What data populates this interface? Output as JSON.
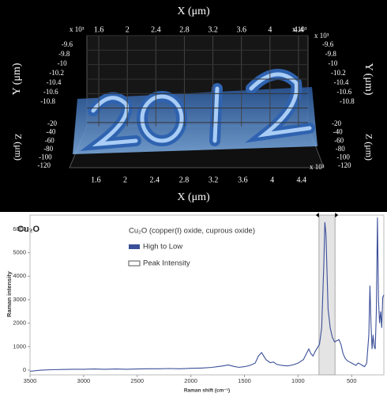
{
  "chart_data": [
    {
      "type": "surface3d",
      "xlabel": "X (μm)",
      "ylabel": "Y (μm)",
      "zlabel": "Z (μm)",
      "multiplier": "x 10³",
      "xlim": [
        1.4,
        4.6
      ],
      "xticks": [
        1.6,
        2.0,
        2.4,
        2.8,
        3.2,
        3.6,
        4.0,
        4.4
      ],
      "ylim": [
        -9.6,
        -10.8
      ],
      "yticks": [
        -9.6,
        -9.8,
        -10.0,
        -10.2,
        -10.4,
        -10.6,
        -10.8
      ],
      "zlim": [
        -20,
        -120
      ],
      "zticks": [
        -20,
        -40,
        -60,
        -80,
        -100,
        -120
      ]
    },
    {
      "type": "line",
      "title": "Cu₂O",
      "legend_title": "Cu₂O (copper(I) oxide, cuprous oxide)",
      "xlabel": "Raman shift (cm⁻¹)",
      "ylabel": "Raman intensity",
      "xlim": [
        3500,
        200
      ],
      "xticks": [
        3500,
        3000,
        2500,
        2000,
        1500,
        1000,
        500
      ],
      "ylim": [
        -200,
        6600
      ],
      "yticks": [
        0,
        1000,
        2000,
        3000,
        4000,
        5000,
        6000
      ],
      "highlight": {
        "name": "Peak Intensity",
        "range": [
          805,
          655
        ]
      },
      "x": [
        3500,
        3400,
        3300,
        3200,
        3100,
        3000,
        2900,
        2800,
        2700,
        2600,
        2500,
        2400,
        2300,
        2200,
        2100,
        2000,
        1900,
        1800,
        1750,
        1700,
        1650,
        1600,
        1550,
        1500,
        1450,
        1400,
        1370,
        1340,
        1300,
        1260,
        1230,
        1200,
        1150,
        1100,
        1050,
        1000,
        950,
        900,
        880,
        860,
        840,
        820,
        800,
        780,
        760,
        750,
        740,
        720,
        700,
        680,
        660,
        640,
        620,
        600,
        580,
        560,
        540,
        520,
        500,
        480,
        460,
        440,
        420,
        400,
        380,
        360,
        340,
        330,
        320,
        310,
        300,
        290,
        280,
        270,
        260,
        250,
        240,
        230,
        220,
        210,
        200
      ],
      "series": [
        {
          "name": "High to Low",
          "color": "#3b4f99",
          "values": [
            -50,
            0,
            20,
            30,
            40,
            40,
            50,
            40,
            50,
            40,
            50,
            60,
            60,
            70,
            60,
            80,
            90,
            120,
            150,
            180,
            220,
            160,
            120,
            150,
            200,
            300,
            600,
            750,
            450,
            320,
            350,
            250,
            200,
            180,
            220,
            300,
            450,
            900,
            700,
            600,
            800,
            950,
            1100,
            1800,
            4500,
            6300,
            5800,
            2600,
            1800,
            1400,
            1200,
            1250,
            1300,
            1100,
            700,
            500,
            400,
            350,
            300,
            250,
            200,
            300,
            260,
            200,
            150,
            300,
            1500,
            3600,
            2000,
            900,
            1500,
            1000,
            900,
            2500,
            6500,
            3000,
            2000,
            2500,
            1800,
            3100,
            3200
          ]
        }
      ]
    }
  ]
}
